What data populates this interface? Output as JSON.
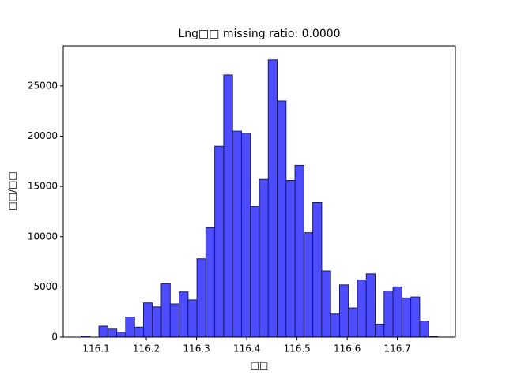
{
  "chart_data": {
    "type": "histogram",
    "title": "Lng□□  missing ratio: 0.0000",
    "xlabel": "□□",
    "ylabel": "□□/□□",
    "bins": [
      116.07,
      116.08775,
      116.1055,
      116.12325,
      116.141,
      116.15875,
      116.1765,
      116.19425,
      116.212,
      116.22975,
      116.2475,
      116.26525,
      116.283,
      116.30075,
      116.3185,
      116.33625,
      116.354,
      116.37175,
      116.3895,
      116.40725,
      116.425,
      116.44275,
      116.4605,
      116.47825,
      116.496,
      116.51375,
      116.5315,
      116.54925,
      116.567,
      116.58475,
      116.6025,
      116.62025,
      116.638,
      116.65575,
      116.6735,
      116.69125,
      116.709,
      116.72675,
      116.7445,
      116.76225,
      116.78
    ],
    "values": [
      100,
      0,
      1100,
      800,
      500,
      2000,
      1000,
      3400,
      3000,
      5300,
      3300,
      4500,
      3700,
      7800,
      10900,
      19000,
      26100,
      20500,
      20300,
      13000,
      15700,
      27600,
      23500,
      15600,
      17100,
      10400,
      13400,
      6600,
      2300,
      5200,
      2900,
      5700,
      6300,
      1300,
      4600,
      5000,
      3900,
      4000,
      1600,
      50
    ],
    "color": "#4d4dff",
    "edgecolor": "#1a1a66",
    "xlim": [
      116.0345,
      116.8155
    ],
    "ylim": [
      0,
      29000
    ],
    "xticks": [
      116.1,
      116.2,
      116.3,
      116.4,
      116.5,
      116.6,
      116.7
    ],
    "yticks": [
      0,
      5000,
      10000,
      15000,
      20000,
      25000
    ]
  }
}
